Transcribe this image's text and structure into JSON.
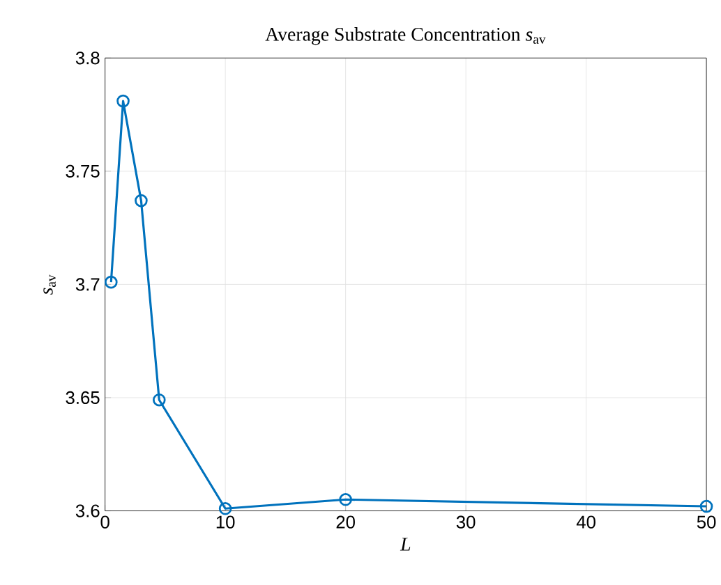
{
  "chart_data": {
    "type": "line",
    "title": "Average Substrate Concentration *s*$_{av}$",
    "xlabel": "L",
    "ylabel": "*s*$_{av}$",
    "x": [
      0.5,
      1.5,
      3,
      4.5,
      10,
      20,
      50
    ],
    "series": [
      {
        "color": "#0072bd",
        "values": [
          3.701,
          3.781,
          3.737,
          3.649,
          3.601,
          3.605,
          3.602
        ]
      }
    ],
    "xlim": [
      0,
      50
    ],
    "ylim": [
      3.6,
      3.8
    ],
    "xticks": [
      0,
      10,
      20,
      30,
      40,
      50
    ],
    "yticks": [
      3.6,
      3.65,
      3.7,
      3.75,
      3.8
    ],
    "grid": true,
    "marker": "circle",
    "line_style": "solid"
  }
}
